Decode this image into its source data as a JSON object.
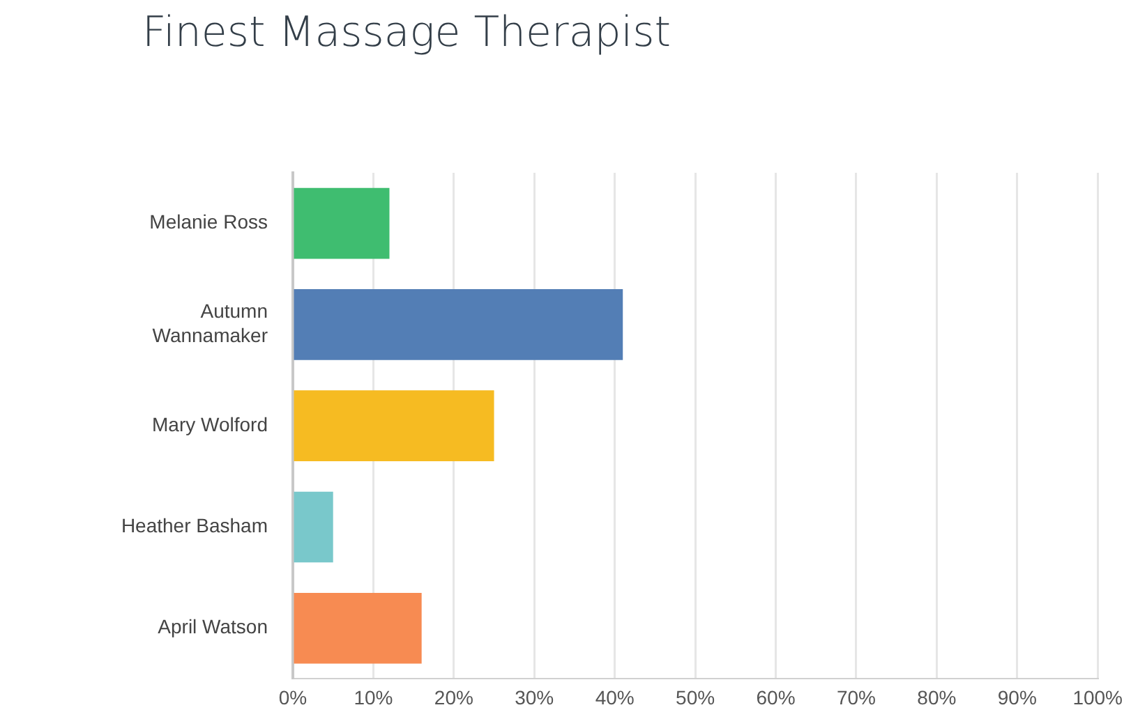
{
  "chart_data": {
    "type": "bar",
    "orientation": "horizontal",
    "title": "Finest Massage Therapist",
    "categories": [
      "Melanie Ross",
      "Autumn Wannamaker",
      "Mary Wolford",
      "Heather Basham",
      "April Watson"
    ],
    "values": [
      12,
      41,
      25,
      5,
      16
    ],
    "colors": [
      "#3fbd70",
      "#537eb5",
      "#f6bb22",
      "#79c8cb",
      "#f78b52"
    ],
    "xlim": [
      0,
      100
    ],
    "xticks": [
      {
        "value": 0,
        "label": "0%"
      },
      {
        "value": 10,
        "label": "10%"
      },
      {
        "value": 20,
        "label": "20%"
      },
      {
        "value": 30,
        "label": "30%"
      },
      {
        "value": 40,
        "label": "40%"
      },
      {
        "value": 50,
        "label": "50%"
      },
      {
        "value": 60,
        "label": "60%"
      },
      {
        "value": 70,
        "label": "70%"
      },
      {
        "value": 80,
        "label": "80%"
      },
      {
        "value": 90,
        "label": "90%"
      },
      {
        "value": 100,
        "label": "100%"
      }
    ],
    "grid": "x",
    "legend": false
  }
}
